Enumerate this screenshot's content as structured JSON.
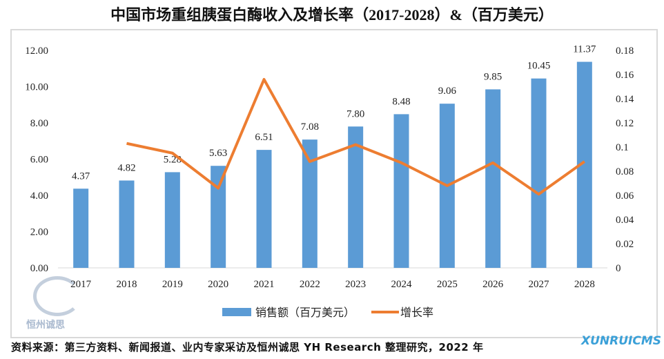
{
  "chart_data": {
    "type": "bar+line",
    "title": "中国市场重组胰蛋白酶收入及增长率（2017-2028）&（百万美元）",
    "categories": [
      "2017",
      "2018",
      "2019",
      "2020",
      "2021",
      "2022",
      "2023",
      "2024",
      "2025",
      "2026",
      "2027",
      "2028"
    ],
    "series": [
      {
        "name": "销售额（百万美元）",
        "type": "bar",
        "axis": "left",
        "color": "#5b9bd5",
        "values": [
          4.37,
          4.82,
          5.28,
          5.63,
          6.51,
          7.08,
          7.8,
          8.48,
          9.06,
          9.85,
          10.45,
          11.37
        ],
        "labels": [
          "4.37",
          "4.82",
          "5.28",
          "5.63",
          "6.51",
          "7.08",
          "7.80",
          "8.48",
          "9.06",
          "9.85",
          "10.45",
          "11.37"
        ]
      },
      {
        "name": "增长率",
        "type": "line",
        "axis": "right",
        "color": "#ed7d31",
        "values": [
          null,
          0.103,
          0.095,
          0.066,
          0.156,
          0.088,
          0.102,
          0.087,
          0.068,
          0.087,
          0.061,
          0.088
        ]
      }
    ],
    "y_left": {
      "range": [
        0,
        12
      ],
      "ticks": [
        "0.00",
        "2.00",
        "4.00",
        "6.00",
        "8.00",
        "10.00",
        "12.00"
      ]
    },
    "y_right": {
      "range": [
        0,
        0.18
      ],
      "ticks": [
        "0",
        "0.02",
        "0.04",
        "0.06",
        "0.08",
        "0.1",
        "0.12",
        "0.14",
        "0.16",
        "0.18"
      ]
    },
    "grid": false,
    "legend": "bottom"
  },
  "source": "资料来源：第三方资料、新闻报道、业内专家采访及恒州诚思 YH Research 整理研究，2022 年",
  "watermarks": {
    "left": "恒州诚思",
    "right": "XUNRUICMS"
  }
}
